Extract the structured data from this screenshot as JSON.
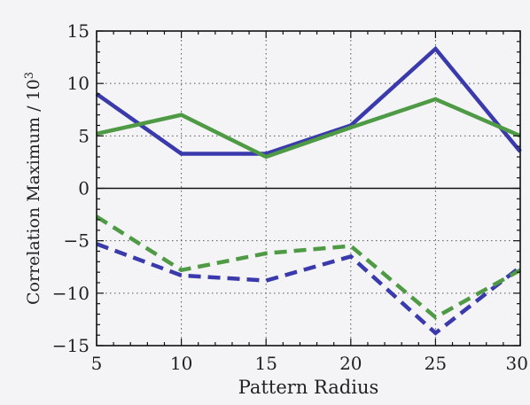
{
  "chart_data": {
    "type": "line",
    "title": "",
    "xlabel": "Pattern Radius",
    "ylabel": "Correlation Maximum / 10",
    "ylabel_exponent": "3",
    "xlim": [
      5,
      30
    ],
    "ylim": [
      -15,
      15
    ],
    "xticks": [
      5,
      10,
      15,
      20,
      25,
      30
    ],
    "yticks": [
      -15,
      -10,
      -5,
      0,
      5,
      10,
      15
    ],
    "xtick_labels": [
      "5",
      "10",
      "15",
      "20",
      "25",
      "30"
    ],
    "ytick_labels": [
      "−15",
      "−10",
      "−5",
      "0",
      "5",
      "10",
      "15"
    ],
    "grid": true,
    "zero_line": true,
    "series": [
      {
        "color": "#3a3aad",
        "style": "solid",
        "x": [
          5,
          10,
          15,
          20,
          25,
          30
        ],
        "y": [
          9,
          3.3,
          3.3,
          6,
          13.3,
          3.5
        ]
      },
      {
        "color": "#4f9a45",
        "style": "solid",
        "x": [
          5,
          10,
          15,
          20,
          25,
          30
        ],
        "y": [
          5.2,
          7,
          3,
          5.8,
          8.5,
          5
        ]
      },
      {
        "color": "#3a3aad",
        "style": "dashed",
        "x": [
          5,
          10,
          15,
          20,
          25,
          30
        ],
        "y": [
          -5.3,
          -8.3,
          -8.8,
          -6.5,
          -13.8,
          -7.5
        ]
      },
      {
        "color": "#4f9a45",
        "style": "dashed",
        "x": [
          5,
          10,
          15,
          20,
          25,
          30
        ],
        "y": [
          -2.7,
          -7.8,
          -6.2,
          -5.5,
          -12.3,
          -7.8
        ]
      }
    ]
  }
}
